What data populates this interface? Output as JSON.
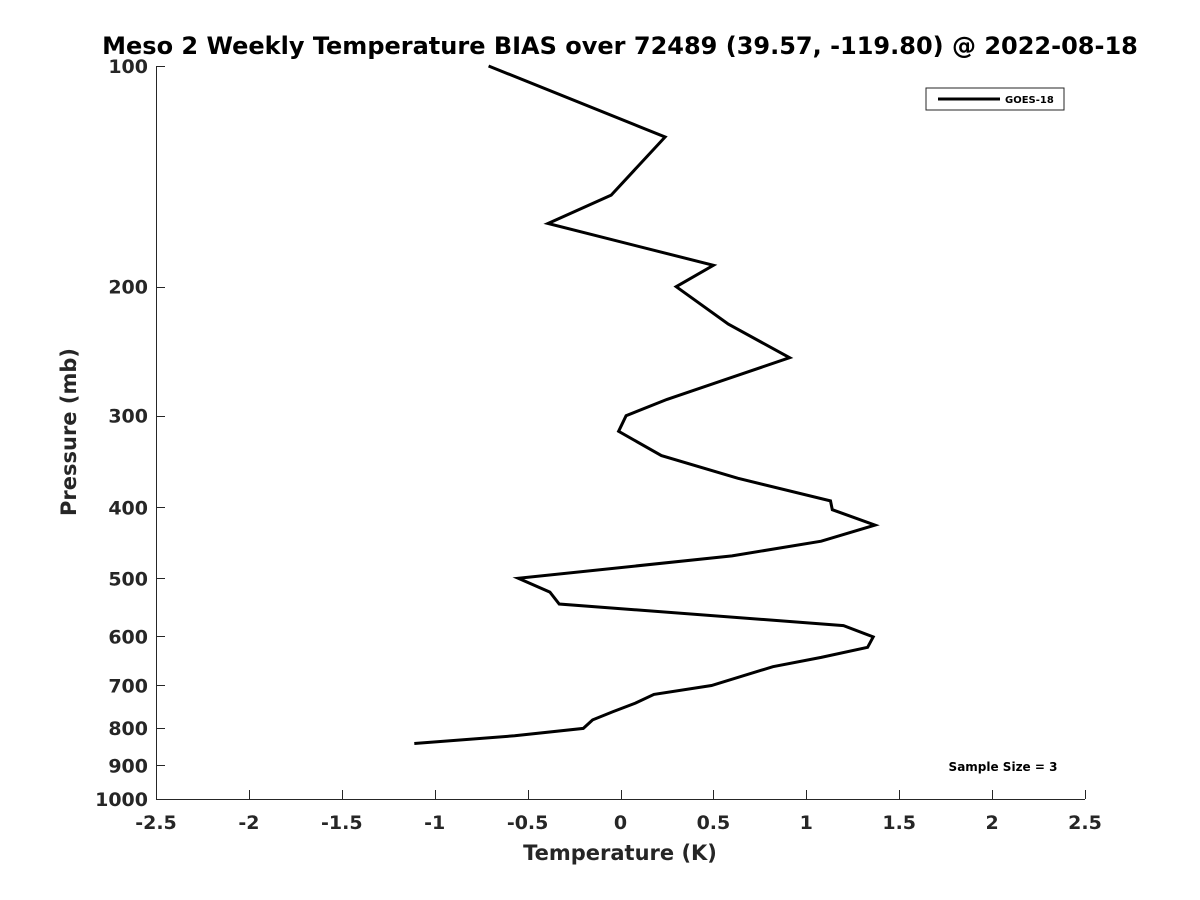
{
  "chart_data": {
    "type": "line",
    "title": "Meso 2 Weekly Temperature BIAS over 72489 (39.57, -119.80) @ 2022-08-18",
    "xlabel": "Temperature (K)",
    "ylabel": "Pressure (mb)",
    "xlim": [
      -2.5,
      2.5
    ],
    "ylim": [
      100,
      1000
    ],
    "y_scale": "log",
    "y_reversed": true,
    "grid": false,
    "legend_position": "top-right",
    "x_ticks": [
      -2.5,
      -2,
      -1.5,
      -1,
      -0.5,
      0,
      0.5,
      1,
      1.5,
      2,
      2.5
    ],
    "x_tick_labels": [
      "-2.5",
      "-2",
      "-1.5",
      "-1",
      "-0.5",
      "0",
      "0.5",
      "1",
      "1.5",
      "2",
      "2.5"
    ],
    "y_ticks": [
      100,
      200,
      300,
      400,
      500,
      600,
      700,
      800,
      900,
      1000
    ],
    "y_tick_labels": [
      "100",
      "200",
      "300",
      "400",
      "500",
      "600",
      "700",
      "800",
      "900",
      "1000"
    ],
    "series": [
      {
        "name": "GOES-18",
        "color": "#000000",
        "points": [
          {
            "x": -0.71,
            "y": 100
          },
          {
            "x": 0.24,
            "y": 125
          },
          {
            "x": -0.05,
            "y": 150
          },
          {
            "x": -0.39,
            "y": 164
          },
          {
            "x": 0.5,
            "y": 187
          },
          {
            "x": 0.3,
            "y": 200
          },
          {
            "x": 0.58,
            "y": 225
          },
          {
            "x": 0.91,
            "y": 250
          },
          {
            "x": 0.25,
            "y": 285
          },
          {
            "x": 0.03,
            "y": 300
          },
          {
            "x": -0.01,
            "y": 315
          },
          {
            "x": 0.22,
            "y": 340
          },
          {
            "x": 0.63,
            "y": 365
          },
          {
            "x": 1.13,
            "y": 392
          },
          {
            "x": 1.14,
            "y": 403
          },
          {
            "x": 1.37,
            "y": 423
          },
          {
            "x": 1.08,
            "y": 445
          },
          {
            "x": 0.6,
            "y": 466
          },
          {
            "x": -0.55,
            "y": 500
          },
          {
            "x": -0.38,
            "y": 522
          },
          {
            "x": -0.33,
            "y": 542
          },
          {
            "x": 1.2,
            "y": 580
          },
          {
            "x": 1.36,
            "y": 601
          },
          {
            "x": 1.33,
            "y": 621
          },
          {
            "x": 1.08,
            "y": 641
          },
          {
            "x": 0.82,
            "y": 660
          },
          {
            "x": 0.49,
            "y": 700
          },
          {
            "x": 0.18,
            "y": 720
          },
          {
            "x": 0.08,
            "y": 740
          },
          {
            "x": -0.04,
            "y": 760
          },
          {
            "x": -0.15,
            "y": 780
          },
          {
            "x": -0.2,
            "y": 801
          },
          {
            "x": -0.57,
            "y": 820
          },
          {
            "x": -1.11,
            "y": 840
          }
        ]
      }
    ],
    "annotations": [
      {
        "text": "Sample Size = 3"
      }
    ]
  }
}
